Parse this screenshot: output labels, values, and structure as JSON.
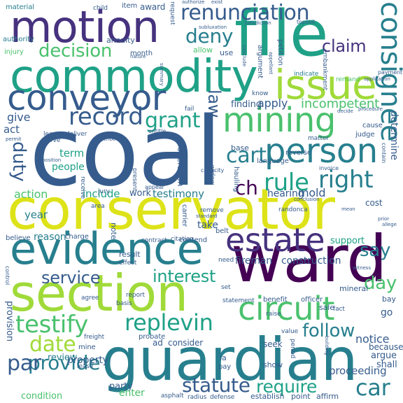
{
  "palette": {
    "background": "#ffffff",
    "c0": "#440154",
    "c1": "#46327e",
    "c2": "#365c8d",
    "c3": "#277f8e",
    "c4": "#1fa187",
    "c5": "#4ac16d",
    "c6": "#a0da39",
    "c7": "#dde318"
  },
  "words": {
    "coal": "coal",
    "conservator": "conservator",
    "guardian": "guardian",
    "ward": "ward",
    "file": "file",
    "section": "section",
    "commodity": "commodity",
    "motion": "motion",
    "evidence": "evidence",
    "conveyor": "conveyor",
    "issue": "issue",
    "consignee": "consignee",
    "estate": "estate",
    "person": "person",
    "mining": "mining",
    "renunciation": "renunciation",
    "circuit": "circuit",
    "record": "record",
    "testify": "testify",
    "replevin": "replevin",
    "provide": "provide",
    "statute": "statute",
    "require": "require",
    "date": "date",
    "right": "right",
    "rule": "rule",
    "grant": "grant",
    "deny": "deny",
    "decision": "decision",
    "claim": "claim",
    "cart": "cart",
    "service": "service",
    "interest": "interest",
    "follow": "follow",
    "ch": "ch",
    "par": "par",
    "car": "car",
    "day": "day",
    "say": "say",
    "duty": "duty",
    "law": "law",
    "reason": "reason",
    "incompetent": "incompetent",
    "apply": "apply",
    "finding": "finding",
    "determine": "determine",
    "action": "action",
    "include": "include",
    "work": "work",
    "testimony": "testimony",
    "hearing": "hearing",
    "mold": "mold",
    "people": "people",
    "term": "term",
    "give": "give",
    "act": "act",
    "year": "year",
    "review": "review",
    "property": "property",
    "party": "party",
    "enter": "enter",
    "condition": "condition",
    "provision": "provision",
    "fireman": "fireman",
    "construction": "construction",
    "support": "support",
    "proceeding": "proceeding",
    "notice": "notice",
    "argue": "argue",
    "because": "because",
    "shall": "shall",
    "annuity": "annuity",
    "month": "month",
    "award": "award",
    "item": "item",
    "request": "request",
    "material": "material",
    "authority": "authority",
    "injury": "injury",
    "child": "child",
    "allow": "allow",
    "use": "use",
    "petition": "petition",
    "argument": "argument",
    "indicate": "indicate",
    "embankment": "embankment",
    "remand": "remand",
    "payment": "payment",
    "application": "application",
    "cause": "cause",
    "judge": "judge",
    "procedure": "procedure",
    "decide": "decide",
    "entitle": "entitle",
    "matter": "matter",
    "reverse": "reverse",
    "language": "language",
    "invoice": "invoice",
    "base": "base",
    "complaint": "complaint",
    "hauling": "hauling",
    "operation": "operation",
    "area": "area",
    "jury": "jury",
    "receive": "receive",
    "present": "present",
    "appear": "appear",
    "widow": "widow",
    "capacity": "capacity",
    "take": "take",
    "remove": "remove",
    "standard": "standard",
    "contend": "contend",
    "belt": "belt",
    "randonca": "randonca",
    "conclusion": "conclusion",
    "carrier": "carrier",
    "cost": "cost",
    "mean": "mean",
    "prior": "prior",
    "allege": "allege",
    "believe": "believe",
    "charge": "charge",
    "contract": "contract",
    "citation": "citation",
    "effect": "effect",
    "result": "result",
    "report": "report",
    "agree": "agree",
    "basis": "basis",
    "need": "need",
    "mineral": "mineral",
    "set": "set",
    "statement": "statement",
    "benefit": "benefit",
    "officer": "officer",
    "sale": "sale",
    "bay": "bay",
    "go": "go",
    "probate": "probate",
    "ad": "ad",
    "consider": "consider",
    "mine": "mine",
    "lease": "lease",
    "freight": "freight",
    "seek": "seek",
    "period": "period",
    "value": "value",
    "show": "show",
    "establish": "establish",
    "point": "point",
    "affirm": "affirm",
    "pay": "pay",
    "la": "la",
    "asphalt": "asphalt",
    "radius": "radius",
    "defense": "defense",
    "authorize": "authorize",
    "exist": "exist",
    "subluxation": "subluxation",
    "conclude": "conclude",
    "jurisdiction": "jurisdiction",
    "topsoil": "topsoil",
    "summary": "summary",
    "nature": "nature",
    "leave": "leave",
    "deliver": "deliver",
    "serve": "serve",
    "describe": "describe",
    "permit": "permit",
    "position": "position",
    "fail": "fail",
    "know": "know",
    "appellant": "appellant",
    "contain": "contain",
    "note": "note",
    "raise": "raise",
    "building": "building",
    "witness": "witness",
    "control": "control",
    "fact": "fact"
  }
}
